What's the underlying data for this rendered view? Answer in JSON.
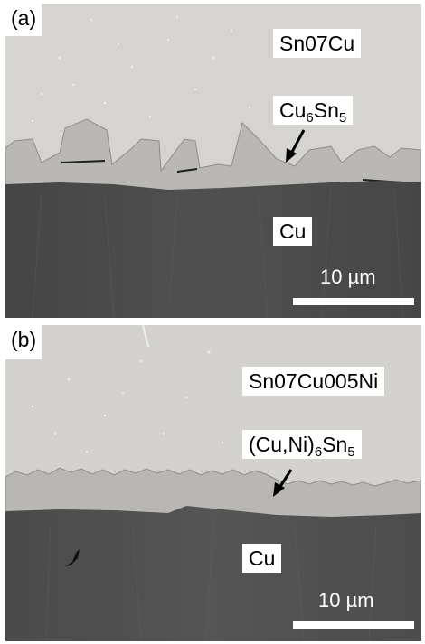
{
  "panels": [
    {
      "tag": "(a)",
      "solder": "Sn07Cu",
      "imc": {
        "base": "Cu",
        "sub1": "6",
        "mid": "Sn",
        "sub2": "5"
      },
      "substrate": "Cu",
      "scale_bar": "10 µm"
    },
    {
      "tag": "(b)",
      "solder": "Sn07Cu005Ni",
      "imc": {
        "base": "(Cu,Ni)",
        "sub1": "6",
        "mid": "Sn",
        "sub2": "5"
      },
      "substrate": "Cu",
      "scale_bar": "10 µm"
    }
  ],
  "colors": {
    "solder_bg": "#d4d3d0",
    "imc": "#b9b8b5",
    "substrate": "#4a4a4a",
    "label_bg": "#ffffff",
    "scale_bar": "#ffffff"
  }
}
